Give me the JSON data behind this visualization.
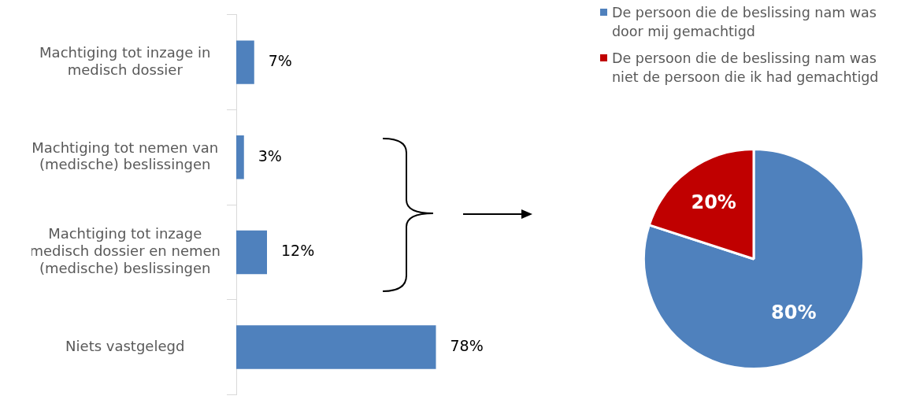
{
  "chart_data": [
    {
      "type": "bar",
      "orientation": "horizontal",
      "categories": [
        "Machtiging tot inzage in medisch dossier",
        "Machtiging tot nemen van (medische) beslissingen",
        "Machtiging tot inzage medisch dossier en nemen (medische) beslissingen",
        "Niets vastgelegd"
      ],
      "values": [
        7,
        3,
        12,
        78
      ],
      "value_labels": [
        "7%",
        "3%",
        "12%",
        "78%"
      ],
      "color": "#4f81bd",
      "tick_labels": "y",
      "legend": false
    },
    {
      "type": "pie",
      "categories": [
        "De persoon die de beslissing nam was door mij gemachtigd",
        "De persoon die de beslissing nam was niet de persoon die ik had gemachtigd"
      ],
      "values": [
        80,
        20
      ],
      "colors": [
        "#4f81bd",
        "#c00000"
      ],
      "value_labels": [
        "80%",
        "20%"
      ],
      "legend": "top"
    }
  ]
}
